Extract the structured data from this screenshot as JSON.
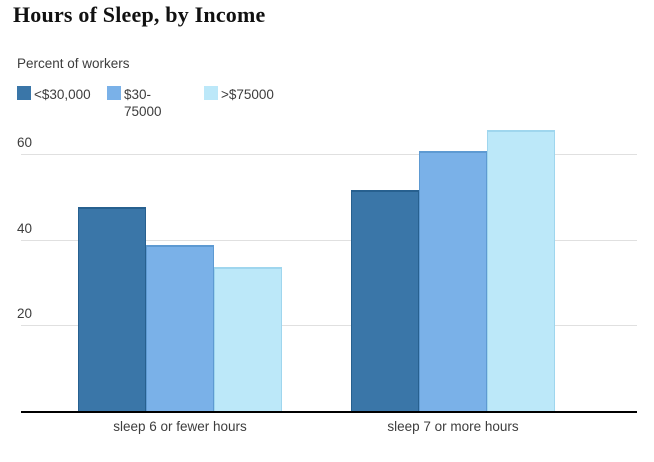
{
  "header": {
    "title": "Hours of Sleep, by Income",
    "subtitle": "Percent of workers"
  },
  "colors": {
    "background": "#ffffff",
    "axis": "#000000",
    "gridline": "#e0e0e0",
    "text": "#3d3d3d",
    "title_text": "#111111"
  },
  "chart_data": {
    "type": "bar",
    "title": "Hours of Sleep, by Income",
    "ylabel": "Percent of workers",
    "xlabel": "",
    "categories": [
      "sleep 6 or fewer hours",
      "sleep 7 or more hours"
    ],
    "series": [
      {
        "name": "<$30,000",
        "color": "#3a76a8",
        "border_color": "#27608f",
        "values": [
          48,
          52
        ]
      },
      {
        "name": "$30-75000",
        "color": "#7ab1e8",
        "border_color": "#5e9ad2",
        "values": [
          39,
          61
        ]
      },
      {
        "name": ">$75000",
        "color": "#bce8f9",
        "border_color": "#9fd6ee",
        "values": [
          34,
          66
        ]
      }
    ],
    "yticks": [
      20,
      40,
      60
    ],
    "ylim": [
      0,
      70.6
    ],
    "grid": true,
    "legend_position": "top-left"
  }
}
